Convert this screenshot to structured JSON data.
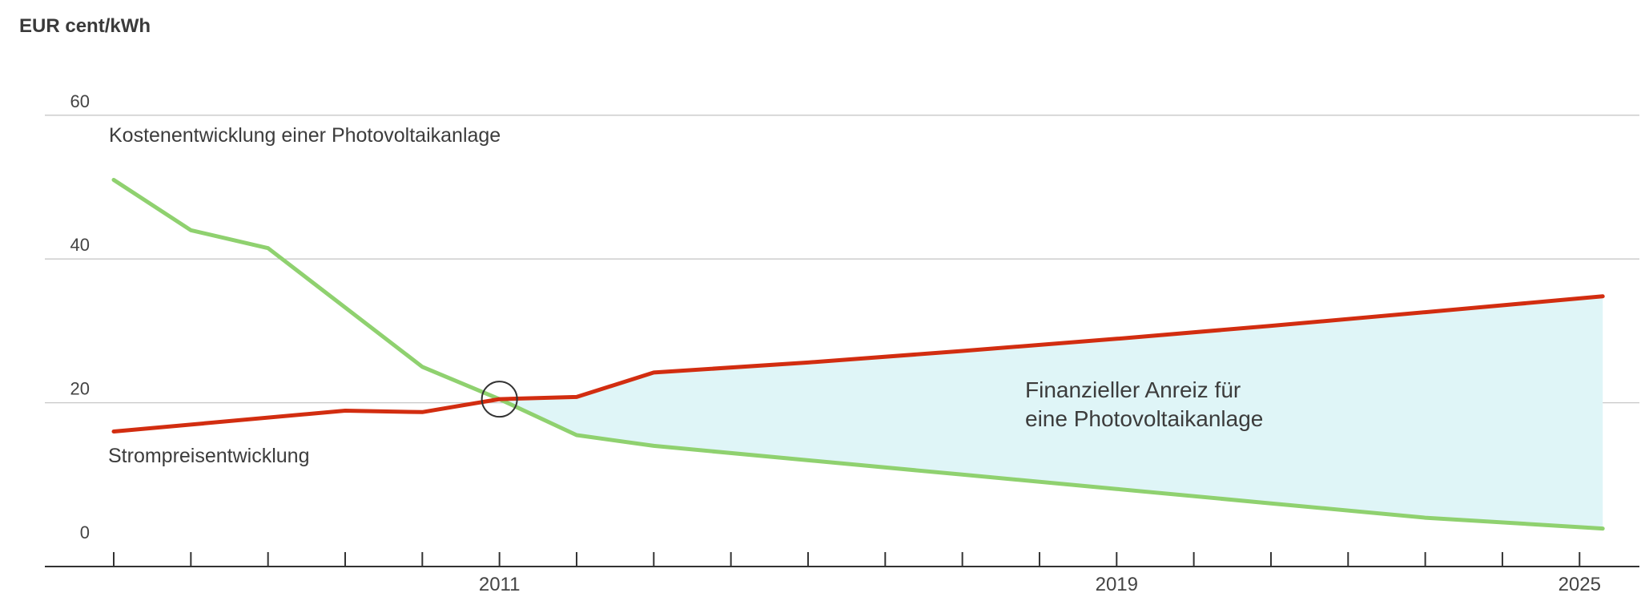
{
  "chart_data": {
    "type": "line",
    "unit_label": "EUR cent/kWh",
    "ylim": [
      0,
      60
    ],
    "y_ticks": [
      0,
      20,
      40,
      60
    ],
    "x_range": [
      2006,
      2026
    ],
    "x_tick_labels": [
      "2011",
      "2019",
      "2025"
    ],
    "grid": true,
    "series": [
      {
        "name": "Kostenentwicklung einer Photovoltaikanlage",
        "color": "#8fd16f",
        "x": [
          2006,
          2007,
          2008,
          2010,
          2011,
          2012,
          2013,
          2015,
          2017,
          2019,
          2021,
          2023,
          2025.3
        ],
        "values": [
          51.0,
          44.0,
          41.5,
          25.0,
          20.5,
          15.5,
          14.0,
          12.0,
          10.0,
          8.0,
          6.0,
          4.0,
          2.5
        ]
      },
      {
        "name": "Strompreisentwicklung",
        "color": "#d22d10",
        "x": [
          2006,
          2009,
          2010,
          2011,
          2012,
          2013,
          2015,
          2017,
          2019,
          2021,
          2023,
          2025.3
        ],
        "values": [
          16.0,
          18.9,
          18.7,
          20.5,
          20.8,
          24.2,
          25.6,
          27.2,
          28.9,
          30.7,
          32.6,
          34.8
        ]
      }
    ],
    "shaded_area": {
      "label": "Finanzieller Anreiz für eine Photovoltaikanlage",
      "label_lines": [
        "Finanzieller Anreiz für",
        "eine Photovoltaikanlage"
      ],
      "color": "#dff5f7",
      "from_x": 2011
    },
    "annotations": [
      {
        "type": "circle",
        "x": 2011,
        "y": 20.5
      }
    ]
  }
}
